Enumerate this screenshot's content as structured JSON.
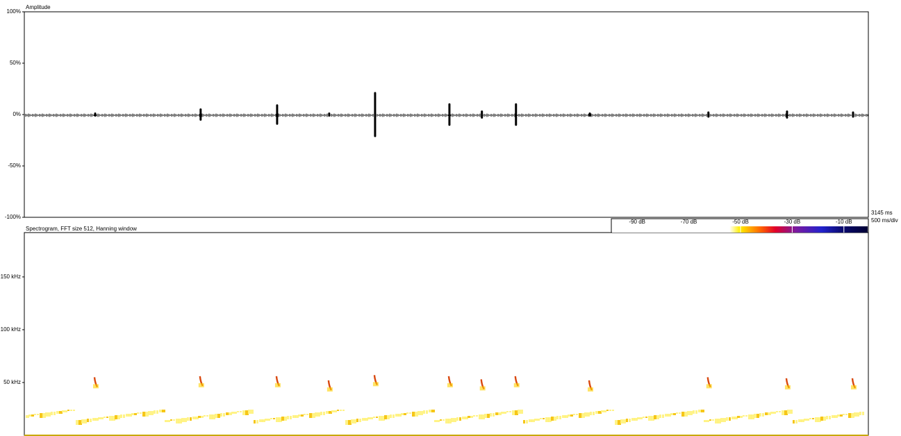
{
  "chart_data": [
    {
      "type": "waveform",
      "title": "Amplitude",
      "x": [
        264,
        657,
        942,
        1136,
        1307,
        1584,
        1705,
        1832,
        2107,
        2549,
        2842,
        3088
      ],
      "values": [
        2,
        6,
        10,
        2,
        22,
        11,
        4,
        11,
        2,
        3,
        4,
        3
      ],
      "color": "#000000",
      "xlim": [
        0,
        3145
      ],
      "ylim": [
        -100,
        100
      ],
      "yticks": [
        {
          "value": 100,
          "label": "100%"
        },
        {
          "value": 50,
          "label": "50%"
        },
        {
          "value": 0,
          "label": "0%"
        },
        {
          "value": -50,
          "label": "-50%"
        },
        {
          "value": -100,
          "label": "-100%"
        }
      ],
      "annotations": [
        "3145 ms",
        "500 ms/div"
      ]
    },
    {
      "type": "spectrogram",
      "title": "Spectrogram, FFT size 512, Hanning window",
      "x": [
        264,
        657,
        942,
        1136,
        1307,
        1584,
        1705,
        1832,
        2107,
        2549,
        2842,
        3088
      ],
      "values": [
        55,
        56,
        56,
        52,
        57,
        56,
        53,
        56,
        52,
        55,
        54,
        54
      ],
      "xlim": [
        0,
        3145
      ],
      "ylim": [
        0,
        192
      ],
      "yticks": [
        {
          "value": 150,
          "label": "150 kHz"
        },
        {
          "value": 100,
          "label": "100 kHz"
        },
        {
          "value": 50,
          "label": "50 kHz"
        }
      ],
      "colorbar": {
        "lim": [
          -100,
          0
        ],
        "ticks": [
          {
            "value": -90,
            "label": "-90 dB"
          },
          {
            "value": -70,
            "label": "-70 dB"
          },
          {
            "value": -50,
            "label": "-50 dB"
          },
          {
            "value": -30,
            "label": "-30 dB"
          },
          {
            "value": -10,
            "label": "-10 dB"
          }
        ]
      }
    }
  ]
}
